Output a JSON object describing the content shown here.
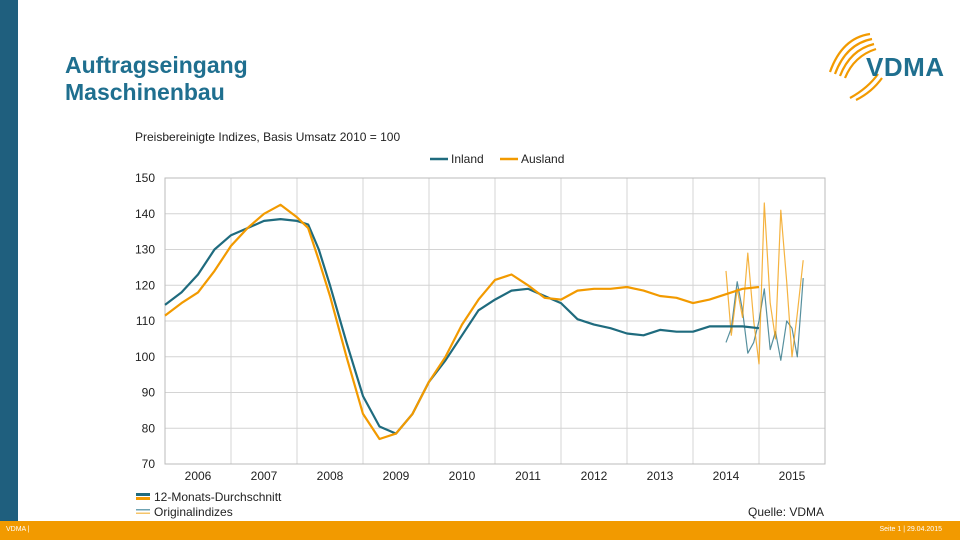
{
  "header": {
    "title_line1": "Auftragseingang",
    "title_line2": "Maschinenbau",
    "logo_text": "VDMA"
  },
  "footer": {
    "left": "VDMA |",
    "right": "Seite 1 | 29.04.2015"
  },
  "colors": {
    "inland": "#1f6b7e",
    "ausland": "#f29a00",
    "brand_blue": "#1f6f8f",
    "grid": "#d4d4d4"
  },
  "chart_data": {
    "type": "line",
    "subtitle": "Preisbereinigte Indizes, Basis Umsatz 2010 = 100",
    "source": "Quelle: VDMA",
    "legend_top": [
      "Inland",
      "Ausland"
    ],
    "legend_bottom": [
      "12-Monats-Durchschnitt",
      "Originalindizes"
    ],
    "x_tick_labels": [
      "2006",
      "2007",
      "2008",
      "2009",
      "2010",
      "2011",
      "2012",
      "2013",
      "2014",
      "2015"
    ],
    "xlim": [
      2005.5,
      2015.5
    ],
    "ylim": [
      70,
      150
    ],
    "y_ticks": [
      70,
      80,
      90,
      100,
      110,
      120,
      130,
      140,
      150
    ],
    "grid": true,
    "series": [
      {
        "name": "Inland",
        "kind": "12-Monats-Durchschnitt",
        "points": [
          [
            2005.5,
            114.5
          ],
          [
            2005.75,
            118
          ],
          [
            2006,
            123
          ],
          [
            2006.25,
            130
          ],
          [
            2006.5,
            134
          ],
          [
            2006.75,
            136
          ],
          [
            2007,
            138
          ],
          [
            2007.25,
            138.5
          ],
          [
            2007.5,
            138
          ],
          [
            2007.67,
            137
          ],
          [
            2007.83,
            130
          ],
          [
            2008,
            120
          ],
          [
            2008.25,
            104
          ],
          [
            2008.5,
            89
          ],
          [
            2008.75,
            80.5
          ],
          [
            2009,
            78.5
          ],
          [
            2009.25,
            84
          ],
          [
            2009.5,
            93
          ],
          [
            2009.75,
            99
          ],
          [
            2010,
            106
          ],
          [
            2010.25,
            113
          ],
          [
            2010.5,
            116
          ],
          [
            2010.75,
            118.5
          ],
          [
            2011,
            119
          ],
          [
            2011.25,
            117
          ],
          [
            2011.5,
            115
          ],
          [
            2011.75,
            110.5
          ],
          [
            2012,
            109
          ],
          [
            2012.25,
            108
          ],
          [
            2012.5,
            106.5
          ],
          [
            2012.75,
            106
          ],
          [
            2013,
            107.5
          ],
          [
            2013.25,
            107
          ],
          [
            2013.5,
            107
          ],
          [
            2013.75,
            108.5
          ],
          [
            2014,
            108.5
          ],
          [
            2014.25,
            108.5
          ],
          [
            2014.5,
            108
          ]
        ]
      },
      {
        "name": "Ausland",
        "kind": "12-Monats-Durchschnitt",
        "points": [
          [
            2005.5,
            111.5
          ],
          [
            2005.75,
            115
          ],
          [
            2006,
            118
          ],
          [
            2006.25,
            124
          ],
          [
            2006.5,
            131
          ],
          [
            2006.75,
            136
          ],
          [
            2007,
            140
          ],
          [
            2007.25,
            142.5
          ],
          [
            2007.5,
            139
          ],
          [
            2007.67,
            136
          ],
          [
            2007.83,
            127
          ],
          [
            2008,
            117
          ],
          [
            2008.25,
            100
          ],
          [
            2008.5,
            84
          ],
          [
            2008.75,
            77
          ],
          [
            2009,
            78.5
          ],
          [
            2009.25,
            84
          ],
          [
            2009.5,
            93
          ],
          [
            2009.75,
            100
          ],
          [
            2010,
            109
          ],
          [
            2010.25,
            116
          ],
          [
            2010.5,
            121.5
          ],
          [
            2010.75,
            123
          ],
          [
            2011,
            120
          ],
          [
            2011.25,
            116.5
          ],
          [
            2011.5,
            116
          ],
          [
            2011.75,
            118.5
          ],
          [
            2012,
            119
          ],
          [
            2012.25,
            119
          ],
          [
            2012.5,
            119.5
          ],
          [
            2012.75,
            118.5
          ],
          [
            2013,
            117
          ],
          [
            2013.25,
            116.5
          ],
          [
            2013.5,
            115
          ],
          [
            2013.75,
            116
          ],
          [
            2014,
            117.5
          ],
          [
            2014.25,
            119
          ],
          [
            2014.5,
            119.5
          ]
        ]
      },
      {
        "name": "Inland",
        "kind": "Originalindizes",
        "points": [
          [
            2014,
            104
          ],
          [
            2014.08,
            108
          ],
          [
            2014.17,
            121
          ],
          [
            2014.25,
            113
          ],
          [
            2014.33,
            101
          ],
          [
            2014.42,
            104
          ],
          [
            2014.5,
            110
          ],
          [
            2014.58,
            119
          ],
          [
            2014.67,
            102
          ],
          [
            2014.75,
            107
          ],
          [
            2014.83,
            99
          ],
          [
            2014.92,
            110
          ],
          [
            2015,
            108
          ],
          [
            2015.08,
            100
          ],
          [
            2015.17,
            122
          ]
        ]
      },
      {
        "name": "Ausland",
        "kind": "Originalindizes",
        "points": [
          [
            2014,
            124
          ],
          [
            2014.08,
            106
          ],
          [
            2014.17,
            119
          ],
          [
            2014.25,
            111
          ],
          [
            2014.33,
            129
          ],
          [
            2014.42,
            110
          ],
          [
            2014.5,
            98
          ],
          [
            2014.58,
            143
          ],
          [
            2014.67,
            115
          ],
          [
            2014.75,
            105
          ],
          [
            2014.83,
            141
          ],
          [
            2014.92,
            121
          ],
          [
            2015,
            100
          ],
          [
            2015.08,
            112
          ],
          [
            2015.17,
            127
          ]
        ]
      }
    ]
  }
}
